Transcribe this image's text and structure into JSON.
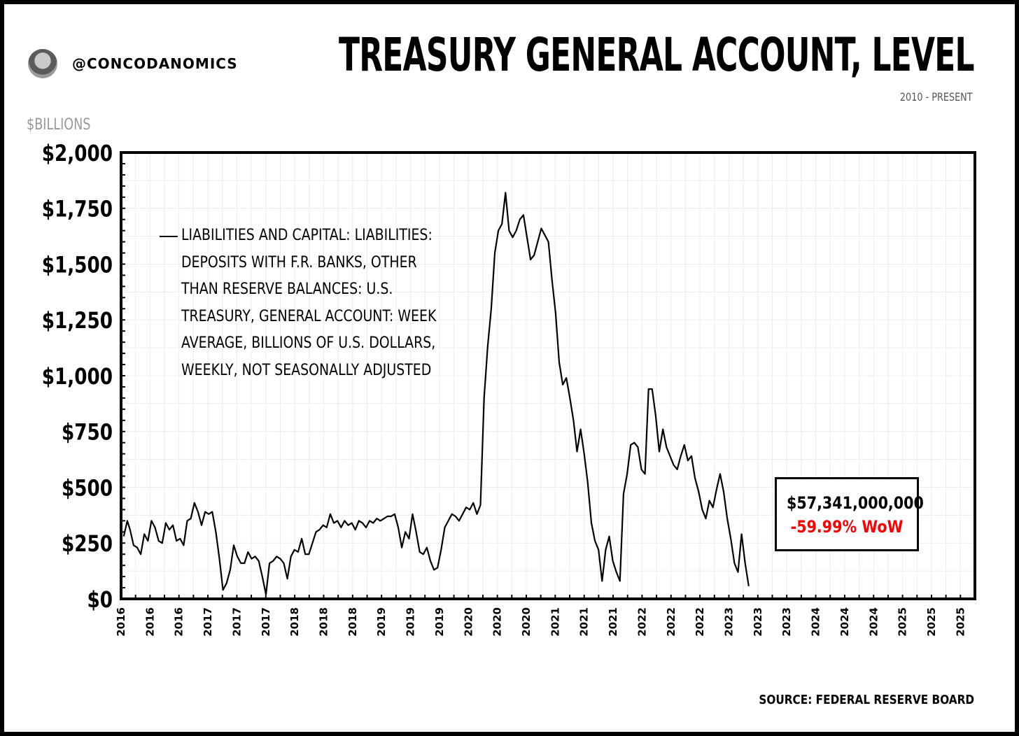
{
  "header": {
    "handle": "@CONCODANOMICS",
    "title": "TREASURY GENERAL ACCOUNT, LEVEL",
    "subtitle": "2010 - PRESENT",
    "unit_label": "$BILLIONS"
  },
  "footer": {
    "source": "SOURCE: FEDERAL RESERVE BOARD"
  },
  "callout": {
    "value": "$57,341,000,000",
    "change": "-59.99% WoW",
    "change_color": "#ff0000"
  },
  "chart_data": {
    "type": "line",
    "title": "TREASURY GENERAL ACCOUNT, LEVEL",
    "subtitle": "2010 - PRESENT",
    "ylabel": "$BILLIONS",
    "ylim": [
      0,
      2000
    ],
    "yticks": [
      0,
      250,
      500,
      750,
      1000,
      1250,
      1500,
      1750,
      2000
    ],
    "ytick_labels": [
      "$0",
      "$250",
      "$500",
      "$750",
      "$1,000",
      "$1,250",
      "$1,500",
      "$1,750",
      "$2,000"
    ],
    "xlim": [
      2015.9,
      2025.45
    ],
    "xtick_labels": [
      "2016",
      "2016",
      "2016",
      "2017",
      "2017",
      "2017",
      "2018",
      "2018",
      "2018",
      "2019",
      "2019",
      "2019",
      "2020",
      "2020",
      "2020",
      "2021",
      "2021",
      "2021",
      "2022",
      "2022",
      "2022",
      "2023",
      "2023",
      "2023",
      "2024",
      "2024",
      "2024",
      "2025",
      "2025",
      "2025"
    ],
    "grid": true,
    "legend_position": "top-left",
    "series": [
      {
        "name": "LIABILITIES AND CAPITAL: LIABILITIES: DEPOSITS WITH F.R. BANKS, OTHER THAN RESERVE BALANCES: U.S. TREASURY, GENERAL ACCOUNT: WEEK AVERAGE, BILLIONS OF U.S. DOLLARS, WEEKLY, NOT SEASONALLY ADJUSTED",
        "color": "#000000",
        "points": [
          [
            2015.93,
            280
          ],
          [
            2015.97,
            350
          ],
          [
            2016.0,
            310
          ],
          [
            2016.04,
            240
          ],
          [
            2016.08,
            230
          ],
          [
            2016.12,
            200
          ],
          [
            2016.16,
            290
          ],
          [
            2016.2,
            260
          ],
          [
            2016.24,
            350
          ],
          [
            2016.28,
            320
          ],
          [
            2016.32,
            260
          ],
          [
            2016.36,
            250
          ],
          [
            2016.4,
            340
          ],
          [
            2016.44,
            310
          ],
          [
            2016.48,
            330
          ],
          [
            2016.52,
            260
          ],
          [
            2016.56,
            270
          ],
          [
            2016.6,
            240
          ],
          [
            2016.64,
            350
          ],
          [
            2016.68,
            360
          ],
          [
            2016.72,
            430
          ],
          [
            2016.76,
            390
          ],
          [
            2016.8,
            330
          ],
          [
            2016.84,
            390
          ],
          [
            2016.88,
            380
          ],
          [
            2016.92,
            390
          ],
          [
            2016.96,
            300
          ],
          [
            2017.0,
            180
          ],
          [
            2017.04,
            40
          ],
          [
            2017.08,
            70
          ],
          [
            2017.12,
            130
          ],
          [
            2017.16,
            240
          ],
          [
            2017.2,
            190
          ],
          [
            2017.24,
            160
          ],
          [
            2017.28,
            160
          ],
          [
            2017.32,
            210
          ],
          [
            2017.36,
            180
          ],
          [
            2017.4,
            190
          ],
          [
            2017.44,
            170
          ],
          [
            2017.48,
            100
          ],
          [
            2017.52,
            20
          ],
          [
            2017.56,
            160
          ],
          [
            2017.6,
            170
          ],
          [
            2017.64,
            190
          ],
          [
            2017.68,
            180
          ],
          [
            2017.72,
            160
          ],
          [
            2017.76,
            90
          ],
          [
            2017.8,
            190
          ],
          [
            2017.84,
            220
          ],
          [
            2017.88,
            210
          ],
          [
            2017.92,
            270
          ],
          [
            2017.96,
            200
          ],
          [
            2018.0,
            200
          ],
          [
            2018.04,
            250
          ],
          [
            2018.08,
            300
          ],
          [
            2018.12,
            310
          ],
          [
            2018.16,
            330
          ],
          [
            2018.2,
            320
          ],
          [
            2018.24,
            380
          ],
          [
            2018.28,
            340
          ],
          [
            2018.32,
            350
          ],
          [
            2018.36,
            320
          ],
          [
            2018.4,
            350
          ],
          [
            2018.44,
            330
          ],
          [
            2018.48,
            340
          ],
          [
            2018.52,
            310
          ],
          [
            2018.56,
            350
          ],
          [
            2018.6,
            340
          ],
          [
            2018.64,
            320
          ],
          [
            2018.68,
            350
          ],
          [
            2018.72,
            340
          ],
          [
            2018.76,
            360
          ],
          [
            2018.8,
            350
          ],
          [
            2018.84,
            360
          ],
          [
            2018.88,
            370
          ],
          [
            2018.92,
            370
          ],
          [
            2018.96,
            380
          ],
          [
            2019.0,
            320
          ],
          [
            2019.04,
            230
          ],
          [
            2019.08,
            300
          ],
          [
            2019.12,
            270
          ],
          [
            2019.16,
            380
          ],
          [
            2019.2,
            300
          ],
          [
            2019.24,
            210
          ],
          [
            2019.28,
            200
          ],
          [
            2019.32,
            230
          ],
          [
            2019.36,
            170
          ],
          [
            2019.4,
            130
          ],
          [
            2019.44,
            140
          ],
          [
            2019.48,
            220
          ],
          [
            2019.52,
            320
          ],
          [
            2019.56,
            350
          ],
          [
            2019.6,
            380
          ],
          [
            2019.64,
            370
          ],
          [
            2019.68,
            350
          ],
          [
            2019.72,
            380
          ],
          [
            2019.76,
            410
          ],
          [
            2019.8,
            400
          ],
          [
            2019.84,
            430
          ],
          [
            2019.88,
            380
          ],
          [
            2019.92,
            420
          ],
          [
            2019.96,
            900
          ],
          [
            2020.0,
            1130
          ],
          [
            2020.04,
            1300
          ],
          [
            2020.08,
            1550
          ],
          [
            2020.12,
            1650
          ],
          [
            2020.16,
            1680
          ],
          [
            2020.2,
            1820
          ],
          [
            2020.24,
            1650
          ],
          [
            2020.28,
            1620
          ],
          [
            2020.32,
            1650
          ],
          [
            2020.36,
            1700
          ],
          [
            2020.4,
            1720
          ],
          [
            2020.44,
            1620
          ],
          [
            2020.48,
            1520
          ],
          [
            2020.52,
            1540
          ],
          [
            2020.56,
            1600
          ],
          [
            2020.6,
            1660
          ],
          [
            2020.64,
            1630
          ],
          [
            2020.68,
            1600
          ],
          [
            2020.72,
            1430
          ],
          [
            2020.76,
            1280
          ],
          [
            2020.8,
            1060
          ],
          [
            2020.84,
            960
          ],
          [
            2020.88,
            990
          ],
          [
            2020.92,
            900
          ],
          [
            2020.96,
            800
          ],
          [
            2021.0,
            660
          ],
          [
            2021.04,
            760
          ],
          [
            2021.08,
            650
          ],
          [
            2021.12,
            520
          ],
          [
            2021.16,
            340
          ],
          [
            2021.2,
            260
          ],
          [
            2021.24,
            220
          ],
          [
            2021.28,
            80
          ],
          [
            2021.32,
            220
          ],
          [
            2021.36,
            280
          ],
          [
            2021.4,
            170
          ],
          [
            2021.44,
            120
          ],
          [
            2021.48,
            80
          ],
          [
            2021.52,
            470
          ],
          [
            2021.56,
            560
          ],
          [
            2021.6,
            690
          ],
          [
            2021.64,
            700
          ],
          [
            2021.68,
            680
          ],
          [
            2021.72,
            580
          ],
          [
            2021.76,
            560
          ],
          [
            2021.8,
            940
          ],
          [
            2021.84,
            940
          ],
          [
            2021.88,
            820
          ],
          [
            2021.92,
            660
          ],
          [
            2021.96,
            760
          ],
          [
            2022.0,
            680
          ],
          [
            2022.04,
            640
          ],
          [
            2022.08,
            600
          ],
          [
            2022.12,
            580
          ],
          [
            2022.16,
            640
          ],
          [
            2022.2,
            690
          ],
          [
            2022.24,
            620
          ],
          [
            2022.28,
            640
          ],
          [
            2022.32,
            540
          ],
          [
            2022.36,
            480
          ],
          [
            2022.4,
            400
          ],
          [
            2022.44,
            360
          ],
          [
            2022.48,
            440
          ],
          [
            2022.52,
            410
          ],
          [
            2022.56,
            490
          ],
          [
            2022.6,
            560
          ],
          [
            2022.64,
            480
          ],
          [
            2022.68,
            360
          ],
          [
            2022.72,
            270
          ],
          [
            2022.76,
            160
          ],
          [
            2022.8,
            120
          ],
          [
            2022.84,
            290
          ],
          [
            2022.88,
            160
          ],
          [
            2022.92,
            57
          ]
        ]
      }
    ]
  }
}
